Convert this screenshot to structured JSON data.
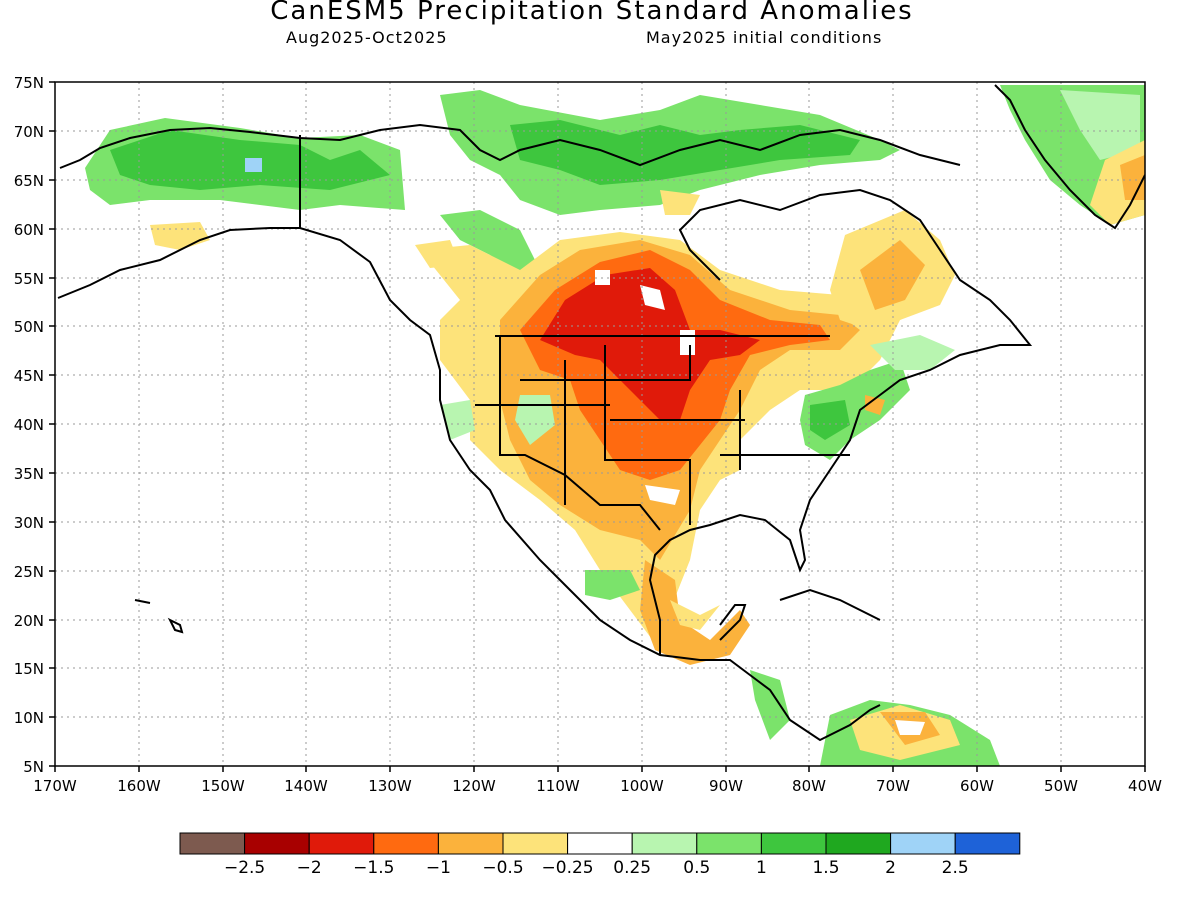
{
  "title": "CanESM5 Precipitation Standard Anomalies",
  "period": "Aug2025-Oct2025",
  "init": "May2025 initial conditions",
  "lat_labels": [
    "75N",
    "70N",
    "65N",
    "60N",
    "55N",
    "50N",
    "45N",
    "40N",
    "35N",
    "30N",
    "25N",
    "20N",
    "15N",
    "10N",
    "5N"
  ],
  "lon_labels": [
    "170W",
    "160W",
    "150W",
    "140W",
    "130W",
    "120W",
    "110W",
    "100W",
    "90W",
    "80W",
    "70W",
    "60W",
    "50W",
    "40W"
  ],
  "colorbar": {
    "colors": [
      "#7d5a4f",
      "#a80000",
      "#e01a0a",
      "#ff6a10",
      "#fbb23c",
      "#fde37a",
      "#ffffff",
      "#b8f5b0",
      "#7be36b",
      "#3ec63e",
      "#1fa81f",
      "#9fd3f7",
      "#1e62d8"
    ],
    "labels": [
      "-2.5",
      "-2",
      "-1.5",
      "-1",
      "-0.5",
      "-0.25",
      "0.25",
      "0.5",
      "1",
      "1.5",
      "2",
      "2.5"
    ]
  }
}
